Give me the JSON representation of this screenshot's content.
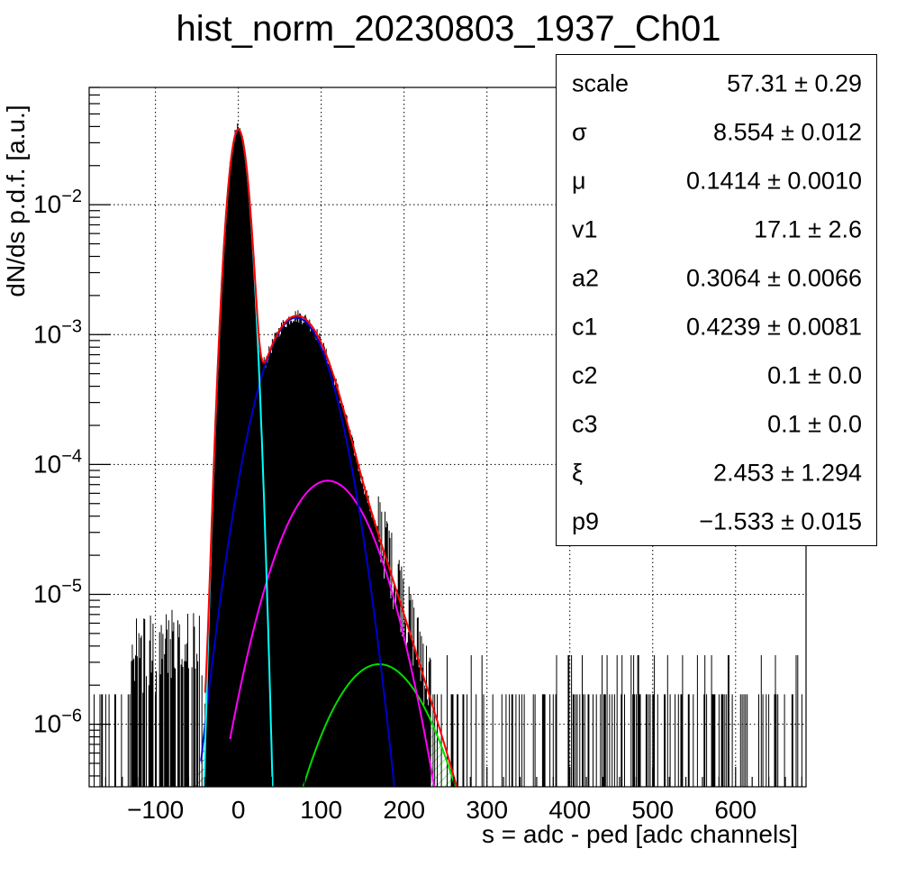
{
  "title": "hist_norm_20230803_1937_Ch01",
  "stats": [
    {
      "name": "scale",
      "value": "57.31 ± 0.29"
    },
    {
      "name": "σ",
      "value": "8.554 ± 0.012"
    },
    {
      "name": "μ",
      "value": "0.1414 ± 0.0010"
    },
    {
      "name": "v1",
      "value": "17.1 ± 2.6"
    },
    {
      "name": "a2",
      "value": "0.3064 ± 0.0066"
    },
    {
      "name": "c1",
      "value": "0.4239 ± 0.0081"
    },
    {
      "name": "c2",
      "value": "0.1 ± 0.0"
    },
    {
      "name": "c3",
      "value": "0.1 ± 0.0"
    },
    {
      "name": "ξ",
      "value": "2.453 ± 1.294"
    },
    {
      "name": "p9",
      "value": "−1.533 ± 0.015"
    }
  ],
  "chart_data": {
    "type": "line",
    "title": "hist_norm_20230803_1937_Ch01",
    "xlabel": "s = adc - ped [adc channels]",
    "ylabel": "dN/ds p.d.f. [a.u.]",
    "xlim": [
      -180,
      685
    ],
    "ylim": [
      3.3e-07,
      0.08
    ],
    "ylog": true,
    "grid": true,
    "xticks": [
      -100,
      0,
      100,
      200,
      300,
      400,
      500,
      600
    ],
    "xticklabels": [
      "−100",
      "0",
      "100",
      "200",
      "300",
      "400",
      "500",
      "600"
    ],
    "yticks": [
      1e-06,
      1e-05,
      0.0001,
      0.001,
      0.01
    ],
    "yticklabels": [
      {
        "base": "10",
        "exp": "−6"
      },
      {
        "base": "10",
        "exp": "−5"
      },
      {
        "base": "10",
        "exp": "−4"
      },
      {
        "base": "10",
        "exp": "−3"
      },
      {
        "base": "10",
        "exp": "−2"
      }
    ],
    "colors": {
      "histogram": "#000000",
      "total_fit": "#ff0000",
      "pedestal": "#00ffff",
      "pe1": "#0000cc",
      "pe2": "#ff00ff",
      "pe3": "#00dd00"
    },
    "series": [
      {
        "key": "pedestal",
        "type": "gaussian",
        "peak_x": 0,
        "peak_y": 0.038,
        "sigma": 8.554,
        "x_range": [
          -45,
          45
        ]
      },
      {
        "key": "pe1",
        "type": "gaussian",
        "peak_x": 70,
        "peak_y": 0.00135,
        "sigma": 29,
        "x_range": [
          -45,
          190
        ]
      },
      {
        "key": "pe2",
        "type": "gaussian",
        "peak_x": 108,
        "peak_y": 7.5e-05,
        "sigma": 39,
        "x_range": [
          -10,
          250
        ]
      },
      {
        "key": "pe3",
        "type": "gaussian",
        "peak_x": 170,
        "peak_y": 2.9e-06,
        "sigma": 44,
        "x_range": [
          40,
          300
        ]
      }
    ]
  }
}
